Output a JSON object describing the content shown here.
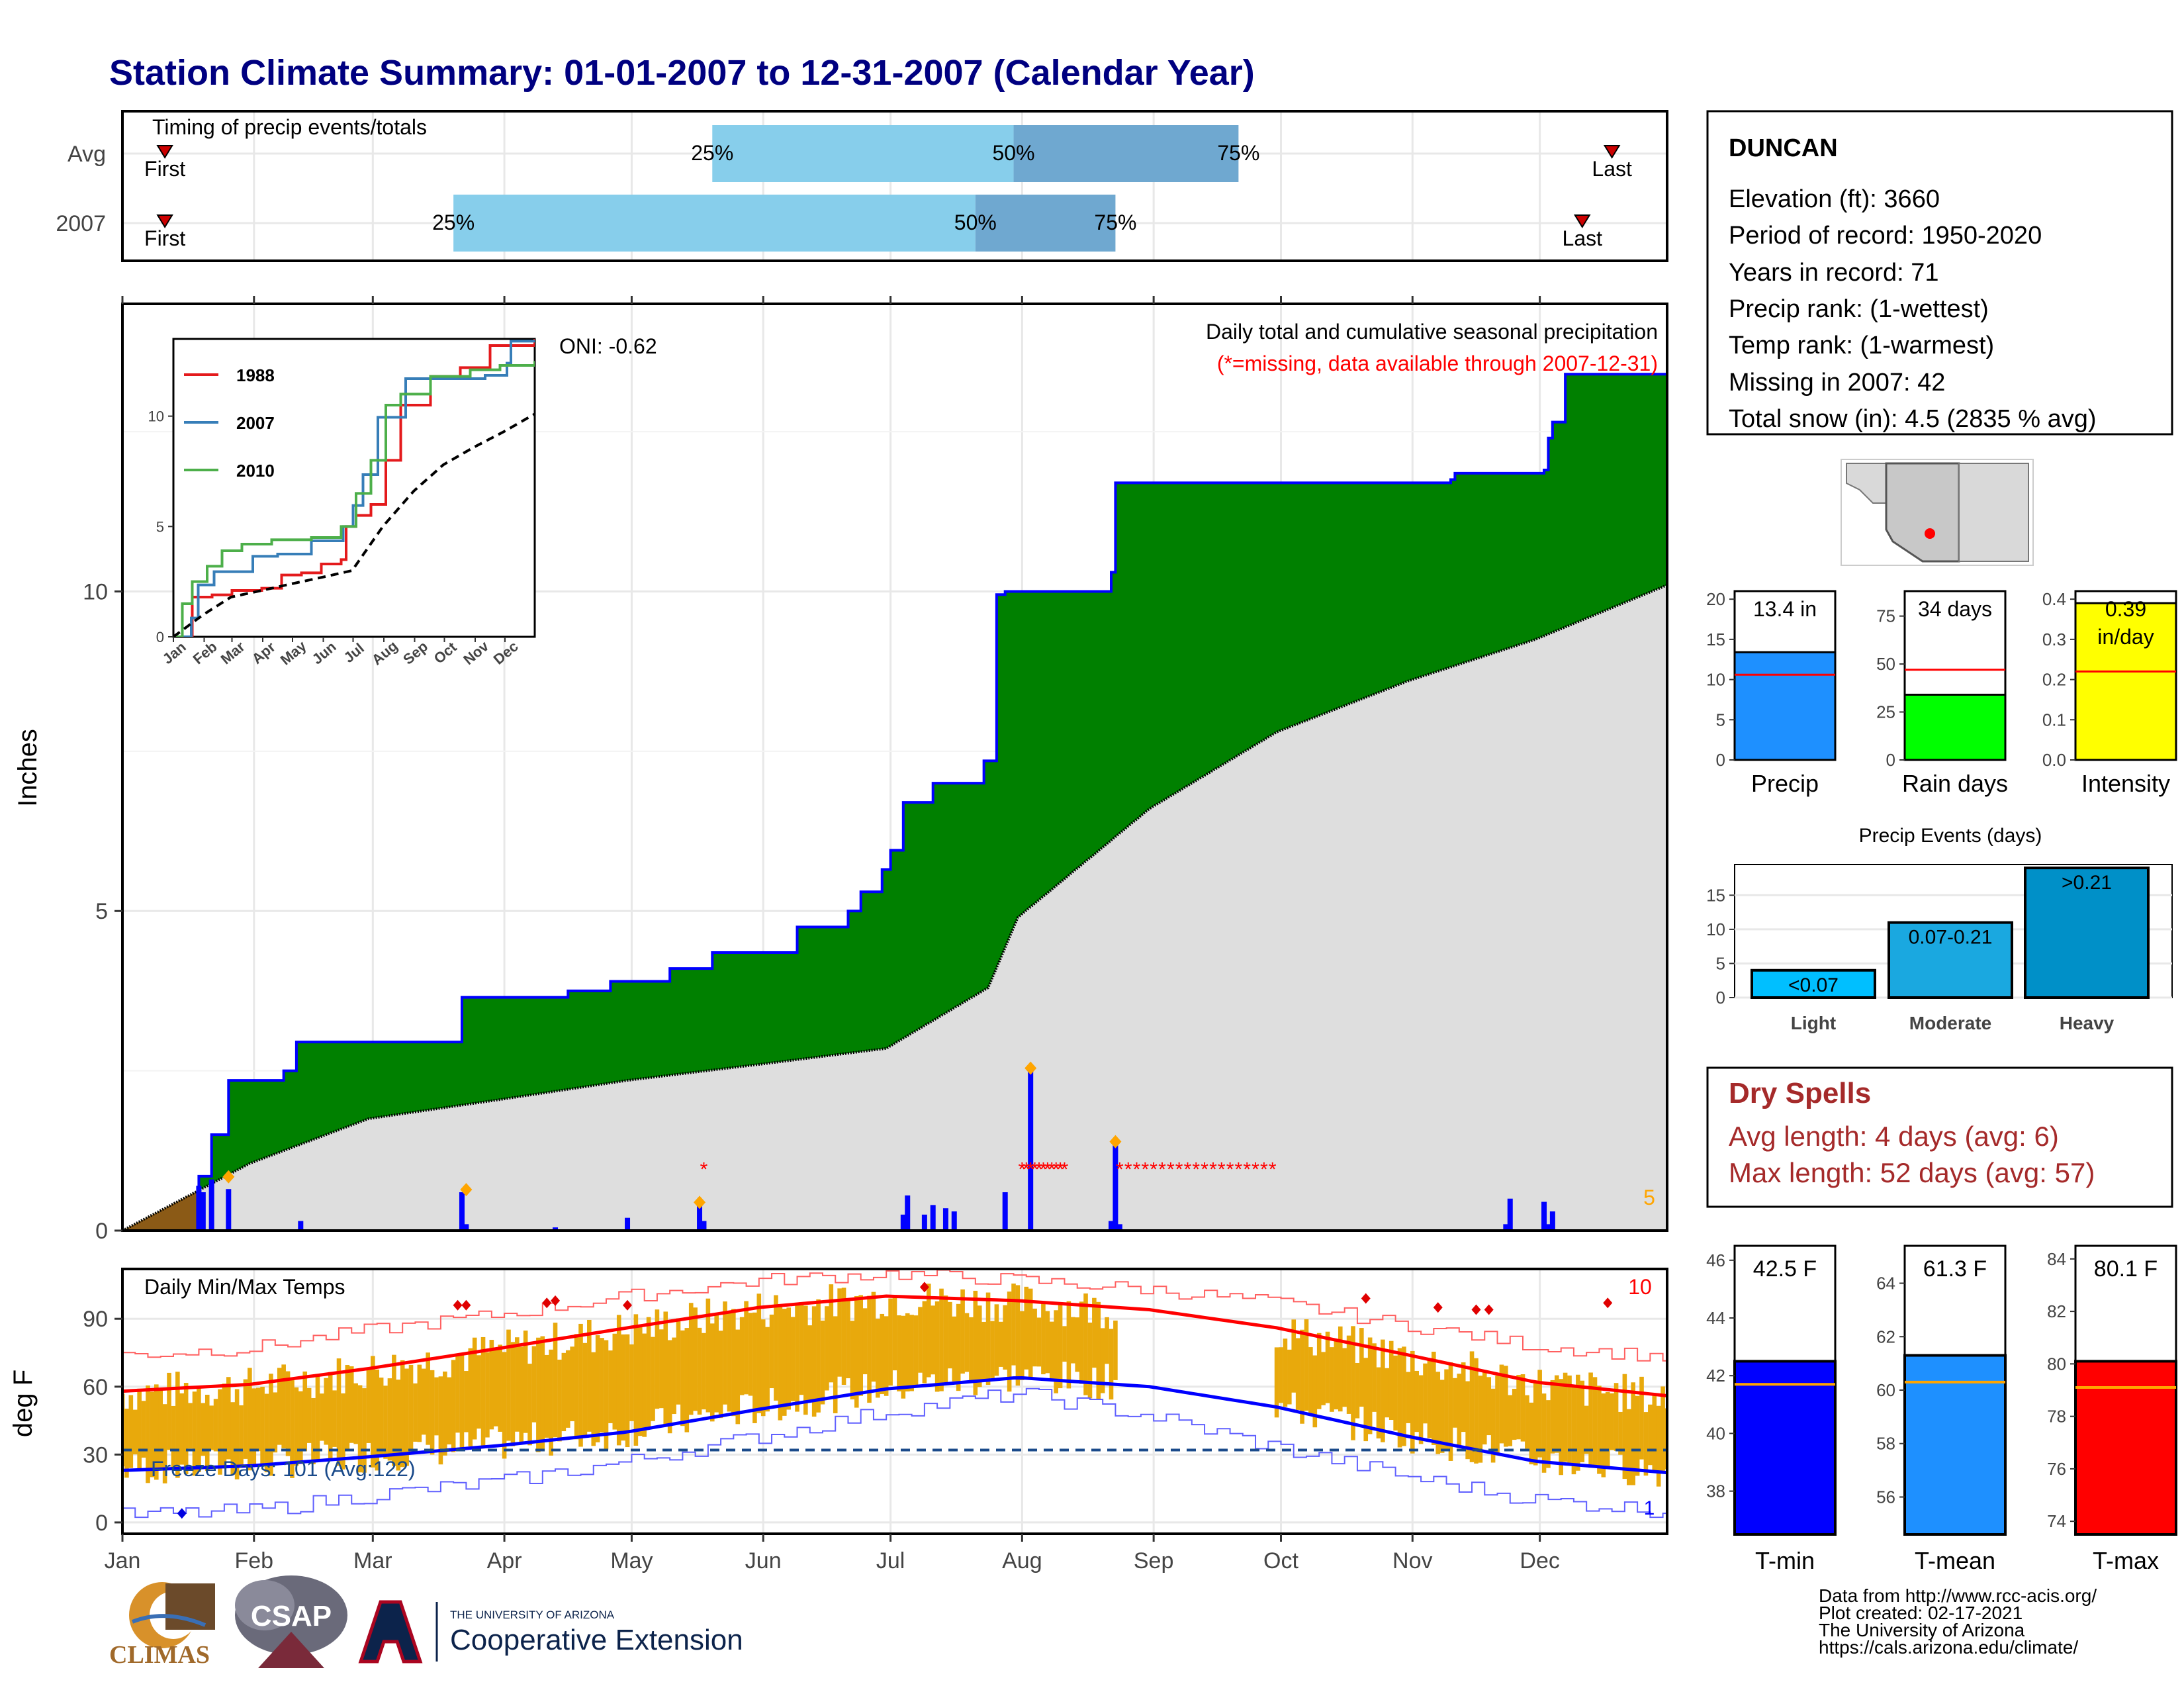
{
  "title": "Station Climate Summary: 01-01-2007 to 12-31-2007 (Calendar Year)",
  "colors": {
    "title": "#000080",
    "green": "#008000",
    "blue": "#0000ff",
    "red": "#ff0000",
    "orange": "#ffa500",
    "gold": "#e8a90c",
    "light_blue": "#87ceeb",
    "mid_blue": "#6fa8d0",
    "gray_fill": "#dedede",
    "brown": "#8b5a16",
    "dry_red": "#a52a2a"
  },
  "station": {
    "name": "DUNCAN",
    "lines": [
      "Elevation (ft): 3660",
      "Period of record: 1950-2020",
      "Years in record: 71",
      "Precip rank:  (1-wettest)",
      "Temp rank:  (1-warmest)",
      "Missing in 2007: 42",
      "Total snow (in): 4.5 (2835 % avg)"
    ]
  },
  "timing": {
    "title": "Timing of precip events/totals",
    "rows": [
      {
        "label": "Avg",
        "first": "First",
        "last": "Last",
        "q25": "25%",
        "q50": "50%",
        "q75": "75%",
        "first_doy": 11,
        "q25_doy": 140,
        "q50_doy": 211,
        "q75_doy": 264,
        "last_doy": 352
      },
      {
        "label": "2007",
        "first": "First",
        "last": "Last",
        "q25": "25%",
        "q50": "50%",
        "q75": "75%",
        "first_doy": 11,
        "q25_doy": 79,
        "q50_doy": 202,
        "q75_doy": 235,
        "last_doy": 345
      }
    ]
  },
  "months": [
    "Jan",
    "Feb",
    "Mar",
    "Apr",
    "May",
    "Jun",
    "Jul",
    "Aug",
    "Sep",
    "Oct",
    "Nov",
    "Dec"
  ],
  "precip_panel": {
    "ylabel": "Inches",
    "yticks": [
      "0",
      "5",
      "10"
    ],
    "caption1": "Daily total and cumulative seasonal precipitation",
    "caption2": "(*=missing, data available through 2007-12-31)",
    "oni": "ONI: -0.62",
    "corner_count": "5",
    "inset": {
      "legend": [
        "1988",
        "2007",
        "2010"
      ],
      "yticks": [
        "0",
        "5",
        "10"
      ],
      "months": [
        "Jan",
        "Feb",
        "Mar",
        "Apr",
        "May",
        "Jun",
        "Jul",
        "Aug",
        "Sep",
        "Oct",
        "Nov",
        "Dec"
      ]
    }
  },
  "temp_panel": {
    "ylabel": "deg F",
    "title": "Daily Min/Max Temps",
    "yticks": [
      "0",
      "30",
      "60",
      "90"
    ],
    "freeze": "Freeze Days: 101 (Avg:122)",
    "count_hi": "10",
    "count_lo": "1"
  },
  "mini_bars": [
    {
      "label": "Precip",
      "value_text": "13.4 in",
      "yticks": [
        "0",
        "5",
        "10",
        "15",
        "20"
      ]
    },
    {
      "label": "Rain days",
      "value_text": "34 days",
      "yticks": [
        "0",
        "25",
        "50",
        "75"
      ]
    },
    {
      "label": "Intensity",
      "value_text": "0.39 in/day",
      "value_line1": "0.39",
      "value_line2": "in/day",
      "yticks": [
        "0.0",
        "0.1",
        "0.2",
        "0.3",
        "0.4"
      ]
    }
  ],
  "events": {
    "title": "Precip Events (days)",
    "yticks": [
      "0",
      "5",
      "10",
      "15"
    ]
  },
  "dry_spells": {
    "title": "Dry Spells",
    "avg": "Avg length: 4 days (avg: 6)",
    "max": "Max length: 52 days (avg: 57)"
  },
  "temp_bars": [
    {
      "label": "T-min",
      "value_text": "42.5 F",
      "yticks": [
        "38",
        "40",
        "42",
        "44",
        "46"
      ]
    },
    {
      "label": "T-mean",
      "value_text": "61.3 F",
      "yticks": [
        "56",
        "58",
        "60",
        "62",
        "64"
      ]
    },
    {
      "label": "T-max",
      "value_text": "80.1 F",
      "yticks": [
        "74",
        "76",
        "78",
        "80",
        "82",
        "84"
      ]
    }
  ],
  "footer": [
    "Data from http://www.rcc-acis.org/",
    "Plot created: 02-17-2021",
    "The University of Arizona",
    "https://cals.arizona.edu/climate/"
  ],
  "logos": {
    "climas": "CLIMAS",
    "csap": "CSAP",
    "ua_small": "THE UNIVERSITY OF ARIZONA",
    "ua_big": "Cooperative Extension"
  },
  "chart_data": [
    {
      "type": "area",
      "title": "Daily total and cumulative seasonal precipitation",
      "ylabel": "Inches",
      "ylim": [
        0,
        14.5
      ],
      "x_axis": "day of year 2007",
      "cumulative_2007": {
        "x": [
          1,
          19,
          22,
          26,
          39,
          42,
          80,
          81,
          106,
          116,
          130,
          140,
          160,
          172,
          175,
          180,
          182,
          185,
          192,
          204,
          207,
          209,
          234,
          235,
          306,
          314,
          315,
          336,
          337,
          338,
          341,
          365
        ],
        "y": [
          0,
          0.85,
          1.5,
          2.35,
          2.5,
          2.95,
          2.95,
          3.65,
          3.75,
          3.9,
          4.1,
          4.35,
          4.75,
          5.0,
          5.3,
          5.65,
          5.95,
          6.7,
          7.0,
          7.35,
          9.95,
          10.0,
          10.3,
          11.7,
          11.7,
          11.75,
          11.85,
          11.9,
          12.4,
          12.65,
          13.4,
          13.4
        ]
      },
      "average_cumulative": {
        "x": [
          1,
          31,
          59,
          90,
          120,
          151,
          181,
          205,
          212,
          243,
          273,
          304,
          334,
          365
        ],
        "y": [
          0,
          1.05,
          1.75,
          2.05,
          2.35,
          2.6,
          2.85,
          3.8,
          4.9,
          6.6,
          7.8,
          8.6,
          9.25,
          10.1
        ]
      },
      "daily_2007": {
        "x": [
          19,
          20,
          22,
          26,
          43,
          81,
          82,
          103,
          120,
          137,
          138,
          185,
          186,
          190,
          192,
          195,
          197,
          209,
          215,
          234,
          235,
          236,
          327,
          328,
          336,
          337,
          338
        ],
        "y": [
          0.7,
          0.6,
          0.8,
          0.65,
          0.15,
          0.6,
          0.1,
          0.05,
          0.2,
          0.4,
          0.15,
          0.25,
          0.55,
          0.25,
          0.4,
          0.35,
          0.3,
          0.6,
          2.5,
          0.15,
          1.35,
          0.1,
          0.1,
          0.5,
          0.45,
          0.1,
          0.3
        ]
      },
      "missing_days": {
        "x": [
          138,
          213,
          214,
          215,
          216,
          217,
          218,
          219,
          220,
          221,
          222,
          223,
          236,
          238,
          240,
          242,
          244,
          246,
          248,
          250,
          252,
          254,
          256,
          258,
          260,
          262,
          264,
          266,
          268,
          270,
          272
        ]
      },
      "inset": {
        "type": "line",
        "series": [
          {
            "name": "1988",
            "x": [
              1,
              20,
              40,
              60,
              90,
              110,
              130,
              150,
              170,
              175,
              185,
              200,
              215,
              230,
              260,
              290,
              320,
              365
            ],
            "y": [
              0,
              1.8,
              1.9,
              2.1,
              2.2,
              2.8,
              2.9,
              3.3,
              3.5,
              5.0,
              5.5,
              6.0,
              8.0,
              10.5,
              11.8,
              12.2,
              13.2,
              13.5
            ]
          },
          {
            "name": "2007",
            "x": [
              1,
              19,
              26,
              42,
              81,
              106,
              140,
              172,
              182,
              192,
              207,
              235,
              315,
              337,
              341,
              365
            ],
            "y": [
              0,
              0.85,
              2.35,
              2.95,
              3.65,
              3.75,
              4.35,
              5.0,
              5.95,
              7.35,
              9.95,
              11.7,
              11.85,
              12.4,
              13.4,
              13.4
            ]
          },
          {
            "name": "2010",
            "x": [
              1,
              10,
              20,
              35,
              50,
              70,
              100,
              140,
              170,
              185,
              200,
              215,
              230,
              260,
              300,
              330,
              365
            ],
            "y": [
              0,
              1.5,
              2.5,
              3.2,
              3.9,
              4.2,
              4.4,
              4.5,
              5.0,
              6.5,
              8.0,
              10.5,
              11.0,
              11.8,
              12.1,
              12.3,
              12.5
            ]
          },
          {
            "name": "average",
            "x": [
              1,
              31,
              59,
              90,
              120,
              151,
              181,
              212,
              243,
              273,
              304,
              334,
              365
            ],
            "y": [
              0,
              1.0,
              1.8,
              2.1,
              2.4,
              2.7,
              3.0,
              5.0,
              6.6,
              7.8,
              8.6,
              9.3,
              10.1
            ]
          }
        ]
      }
    },
    {
      "type": "line",
      "title": "Daily Min/Max Temps",
      "ylabel": "deg F",
      "ylim": [
        -5,
        112
      ],
      "avg_tmax": {
        "x": [
          1,
          31,
          59,
          90,
          120,
          151,
          181,
          212,
          243,
          273,
          304,
          334,
          365
        ],
        "y": [
          58,
          61,
          68,
          77,
          86,
          95,
          100,
          98,
          94,
          86,
          74,
          62,
          56
        ]
      },
      "avg_tmin": {
        "x": [
          1,
          31,
          59,
          90,
          120,
          151,
          181,
          212,
          243,
          273,
          304,
          334,
          365
        ],
        "y": [
          23,
          25,
          29,
          34,
          40,
          50,
          59,
          64,
          60,
          51,
          38,
          27,
          22
        ]
      },
      "record_tmax": {
        "x": [
          1,
          31,
          59,
          90,
          120,
          151,
          181,
          212,
          243,
          273,
          304,
          334,
          365
        ],
        "y": [
          74,
          77,
          85,
          92,
          100,
          107,
          110,
          107,
          103,
          97,
          87,
          78,
          73
        ]
      },
      "record_tmin": {
        "x": [
          1,
          31,
          59,
          90,
          120,
          151,
          181,
          212,
          243,
          273,
          304,
          334,
          365
        ],
        "y": [
          3,
          5,
          12,
          18,
          27,
          38,
          49,
          57,
          47,
          33,
          20,
          10,
          5
        ]
      },
      "freeze_line": 32
    },
    {
      "type": "bar",
      "title": "Precip",
      "categories": [
        "Precip"
      ],
      "values": [
        13.4
      ],
      "average": 10.6,
      "ylim": [
        0,
        21
      ]
    },
    {
      "type": "bar",
      "title": "Rain days",
      "categories": [
        "Rain days"
      ],
      "values": [
        34
      ],
      "average": 47,
      "ylim": [
        0,
        88
      ]
    },
    {
      "type": "bar",
      "title": "Intensity",
      "categories": [
        "Intensity"
      ],
      "values": [
        0.39
      ],
      "average": 0.22,
      "ylim": [
        0,
        0.42
      ]
    },
    {
      "type": "bar",
      "title": "Precip Events (days)",
      "categories": [
        "Light",
        "Moderate",
        "Heavy"
      ],
      "bar_labels": [
        "<0.07",
        "0.07-0.21",
        ">0.21"
      ],
      "values": [
        4,
        11,
        19
      ],
      "ylim": [
        0,
        19.5
      ]
    },
    {
      "type": "bar",
      "title": "T-min",
      "categories": [
        "T-min"
      ],
      "values": [
        42.5
      ],
      "average": 41.7,
      "ylim": [
        36.5,
        46.5
      ]
    },
    {
      "type": "bar",
      "title": "T-mean",
      "categories": [
        "T-mean"
      ],
      "values": [
        61.3
      ],
      "average": 60.3,
      "ylim": [
        54.6,
        65.4
      ]
    },
    {
      "type": "bar",
      "title": "T-max",
      "categories": [
        "T-max"
      ],
      "values": [
        80.1
      ],
      "average": 79.1,
      "ylim": [
        73.5,
        84.5
      ]
    }
  ]
}
